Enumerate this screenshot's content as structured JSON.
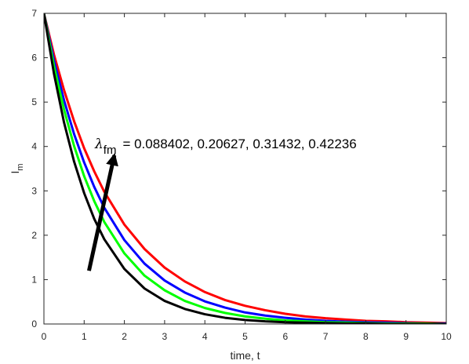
{
  "chart_data": {
    "type": "line",
    "title": "",
    "xlabel": "time, t",
    "ylabel": "I",
    "ylabel_subscript": "m",
    "xlim": [
      0,
      10
    ],
    "ylim": [
      0,
      7
    ],
    "xticks": [
      "0",
      "1",
      "2",
      "3",
      "4",
      "5",
      "6",
      "7",
      "8",
      "9",
      "10"
    ],
    "yticks": [
      "0",
      "1",
      "2",
      "3",
      "4",
      "5",
      "6",
      "7"
    ],
    "grid": false,
    "annotation": {
      "symbol": "λ",
      "subscript": "fm",
      "text": "=  0.088402, 0.20627, 0.31432, 0.42236",
      "arrow": {
        "from": [
          1.12,
          1.2
        ],
        "to": [
          1.75,
          3.8
        ]
      }
    },
    "series": [
      {
        "color": "#ff0000",
        "x": [
          0,
          0.25,
          0.5,
          0.75,
          1,
          1.25,
          1.5,
          2,
          2.5,
          3,
          3.5,
          4,
          4.5,
          5,
          5.5,
          6,
          6.5,
          7,
          7.5,
          8,
          8.5,
          9,
          9.5,
          10
        ],
        "values": [
          7,
          6.07,
          5.27,
          4.57,
          3.96,
          3.44,
          2.98,
          2.24,
          1.69,
          1.27,
          0.96,
          0.72,
          0.54,
          0.41,
          0.31,
          0.23,
          0.17,
          0.13,
          0.1,
          0.07,
          0.06,
          0.04,
          0.03,
          0.02
        ]
      },
      {
        "color": "#0000ff",
        "x": [
          0,
          0.25,
          0.5,
          0.75,
          1,
          1.25,
          1.5,
          2,
          2.5,
          3,
          3.5,
          4,
          4.5,
          5,
          5.5,
          6,
          6.5,
          7,
          7.5,
          8,
          8.5,
          9,
          9.5,
          10
        ],
        "values": [
          7,
          5.94,
          5.04,
          4.28,
          3.64,
          3.09,
          2.62,
          1.89,
          1.36,
          0.98,
          0.71,
          0.51,
          0.37,
          0.26,
          0.19,
          0.14,
          0.1,
          0.07,
          0.05,
          0.04,
          0.03,
          0.02,
          0.01,
          0.01
        ]
      },
      {
        "color": "#00ff00",
        "x": [
          0,
          0.25,
          0.5,
          0.75,
          1,
          1.25,
          1.5,
          2,
          2.5,
          3,
          3.5,
          4,
          4.5,
          5,
          5.5,
          6,
          6.5,
          7,
          7.5,
          8,
          8.5,
          9,
          9.5,
          10
        ],
        "values": [
          7,
          5.81,
          4.83,
          4.01,
          3.33,
          2.77,
          2.3,
          1.59,
          1.09,
          0.76,
          0.52,
          0.36,
          0.25,
          0.17,
          0.12,
          0.08,
          0.06,
          0.04,
          0.03,
          0.02,
          0.01,
          0.01,
          0.01,
          0
        ]
      },
      {
        "color": "#000000",
        "x": [
          0,
          0.25,
          0.5,
          0.75,
          1,
          1.25,
          1.5,
          2,
          2.5,
          3,
          3.5,
          4,
          4.5,
          5,
          5.5,
          6,
          6.5,
          7,
          7.5,
          8,
          8.5,
          9,
          9.5,
          10
        ],
        "values": [
          7,
          5.64,
          4.54,
          3.66,
          2.95,
          2.37,
          1.91,
          1.24,
          0.8,
          0.52,
          0.34,
          0.22,
          0.14,
          0.09,
          0.06,
          0.04,
          0.03,
          0.02,
          0.01,
          0.01,
          0,
          0,
          0,
          0
        ]
      }
    ]
  }
}
